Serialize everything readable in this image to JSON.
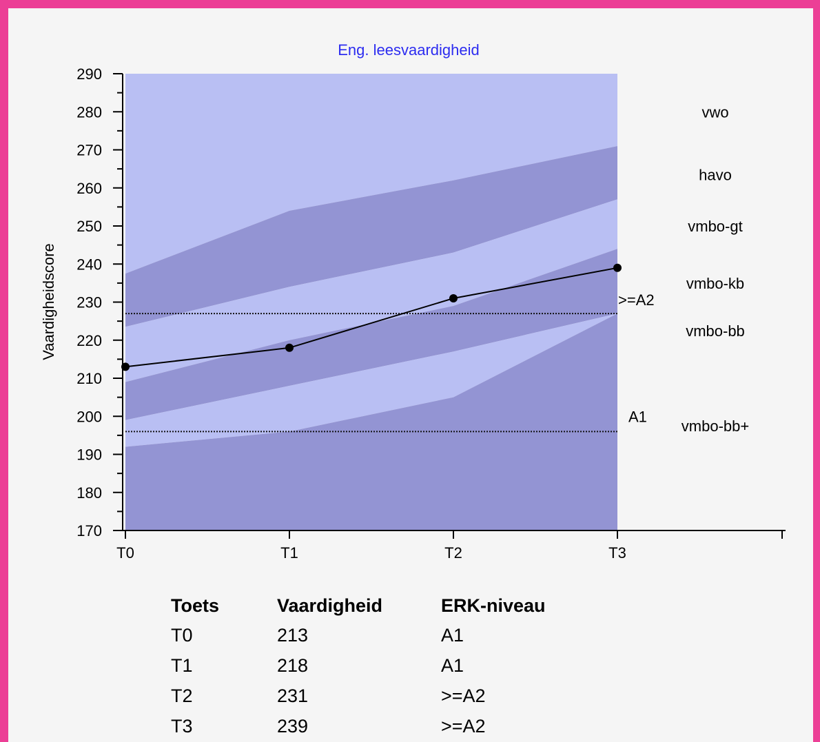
{
  "chart_data": {
    "type": "area",
    "title": "Eng. leesvaardigheid",
    "ylabel": "Vaardigheidscore",
    "xlabel": "",
    "ylim": [
      170,
      290
    ],
    "yticks": [
      170,
      180,
      190,
      200,
      210,
      220,
      230,
      240,
      250,
      260,
      270,
      280,
      290
    ],
    "categories": [
      "T0",
      "T1",
      "T2",
      "T3"
    ],
    "bands": [
      {
        "name": "vwo",
        "lower": [
          237.5,
          254,
          262,
          271
        ],
        "upper": [
          290,
          290,
          290,
          290
        ],
        "color": "#b9bff3"
      },
      {
        "name": "havo",
        "lower": [
          223.5,
          234,
          243,
          257
        ],
        "upper": [
          237.5,
          254,
          262,
          271
        ],
        "color": "#9394d3"
      },
      {
        "name": "vmbo-gt",
        "lower": [
          209,
          220,
          229,
          244
        ],
        "upper": [
          223.5,
          234,
          243,
          257
        ],
        "color": "#b9bff3"
      },
      {
        "name": "vmbo-kb",
        "lower": [
          199,
          208,
          217,
          227
        ],
        "upper": [
          209,
          220,
          229,
          244
        ],
        "color": "#9394d3"
      },
      {
        "name": "vmbo-bb",
        "lower": [
          192,
          196,
          205,
          227
        ],
        "upper": [
          199,
          208,
          217,
          227
        ],
        "color": "#b9bff3"
      },
      {
        "name": "vmbo-bb+",
        "lower": [
          170,
          170,
          170,
          170
        ],
        "upper": [
          192,
          196,
          205,
          227
        ],
        "color": "#9394d3"
      }
    ],
    "band_labels": [
      {
        "text": "vwo",
        "y": 280
      },
      {
        "text": "havo",
        "y": 263.5
      },
      {
        "text": "vmbo-gt",
        "y": 250
      },
      {
        "text": "vmbo-kb",
        "y": 235
      },
      {
        "text": "vmbo-bb",
        "y": 222.5
      },
      {
        "text": "vmbo-bb+",
        "y": 197.5
      }
    ],
    "reference_lines": [
      {
        "label": ">=A2",
        "y": 227
      },
      {
        "label": "A1",
        "y": 196
      }
    ],
    "series": [
      {
        "name": "Vaardigheid",
        "values": [
          213,
          218,
          231,
          239
        ],
        "color": "#000000"
      }
    ],
    "grid": false
  },
  "table": {
    "headers": [
      "Toets",
      "Vaardigheid",
      "ERK-niveau"
    ],
    "rows": [
      [
        "T0",
        "213",
        "A1"
      ],
      [
        "T1",
        "218",
        "A1"
      ],
      [
        "T2",
        "231",
        ">=A2"
      ],
      [
        "T3",
        "239",
        ">=A2"
      ]
    ]
  },
  "colors": {
    "border": "#ec3f96",
    "band_light": "#b9bff3",
    "band_dark": "#9394d3",
    "title": "#2c2cf0"
  }
}
